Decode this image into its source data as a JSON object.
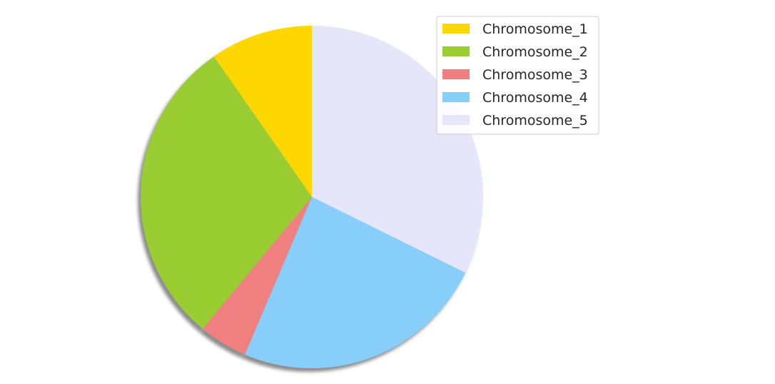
{
  "chart_data": {
    "type": "pie",
    "title": "",
    "start_angle_deg": 90,
    "direction": "counterclockwise",
    "shadow": true,
    "legend_position": "top-right",
    "slices": [
      {
        "label": "Chromosome_1",
        "value": 9.7,
        "color": "#FFD700"
      },
      {
        "label": "Chromosome_2",
        "value": 29.3,
        "color": "#9ACD32"
      },
      {
        "label": "Chromosome_3",
        "value": 4.6,
        "color": "#F08080"
      },
      {
        "label": "Chromosome_4",
        "value": 24.1,
        "color": "#87CEFA"
      },
      {
        "label": "Chromosome_5",
        "value": 32.3,
        "color": "#E6E6FA"
      }
    ]
  }
}
